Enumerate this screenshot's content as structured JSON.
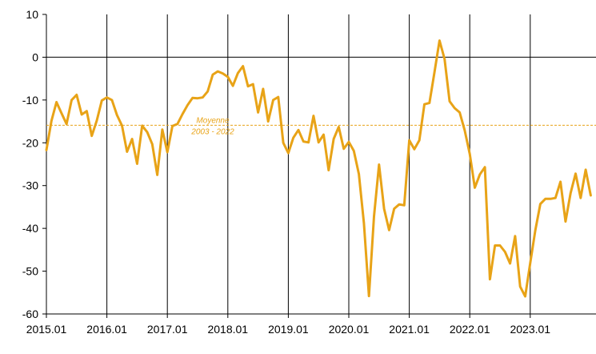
{
  "chart_data": {
    "type": "line",
    "title": "",
    "xlabel": "",
    "ylabel": "",
    "ylim": [
      -60,
      10
    ],
    "yticks": [
      10,
      0,
      -10,
      -20,
      -30,
      -40,
      -50,
      -60
    ],
    "x_ticks": [
      "2015.01",
      "2016.01",
      "2017.01",
      "2018.01",
      "2019.01",
      "2020.01",
      "2021.01",
      "2022.01",
      "2023.01"
    ],
    "x_start": "2015.01",
    "x_end": "2023.11",
    "vertical_gridlines": true,
    "horizontal_gridlines": false,
    "zero_line": true,
    "legend": "none",
    "colors": {
      "series": "#E8A317",
      "axis": "#000000"
    },
    "series": [
      {
        "values": [
          -21.7,
          -14.9,
          -10.5,
          -13.1,
          -15.6,
          -10.0,
          -8.8,
          -13.4,
          -12.6,
          -18.4,
          -14.8,
          -10.1,
          -9.4,
          -10.0,
          -13.5,
          -16.0,
          -22.1,
          -19.1,
          -24.9,
          -16.0,
          -17.5,
          -20.3,
          -27.5,
          -16.9,
          -22.2,
          -16.1,
          -15.6,
          -13.3,
          -11.2,
          -9.5,
          -9.6,
          -9.4,
          -8.0,
          -4.1,
          -3.3,
          -3.8,
          -4.6,
          -6.7,
          -3.7,
          -2.1,
          -6.8,
          -6.3,
          -12.9,
          -7.4,
          -15.0,
          -10.0,
          -9.3,
          -20.0,
          -22.4,
          -18.8,
          -17.0,
          -19.7,
          -19.9,
          -13.7,
          -19.9,
          -18.1,
          -26.4,
          -19.1,
          -16.3,
          -21.4,
          -19.8,
          -21.9,
          -27.3,
          -38.8,
          -55.8,
          -37.2,
          -25.1,
          -35.4,
          -40.4,
          -35.4,
          -34.4,
          -34.6,
          -19.4,
          -21.5,
          -19.4,
          -11.0,
          -10.7,
          -3.5,
          3.9,
          -0.4,
          -10.3,
          -11.9,
          -12.9,
          -17.1,
          -22.6,
          -30.5,
          -27.4,
          -25.7,
          -51.9,
          -44.0,
          -44.0,
          -45.5,
          -48.2,
          -41.8,
          -53.6,
          -55.9,
          -48.1,
          -40.5,
          -34.3,
          -33.1,
          -33.1,
          -32.9,
          -29.1,
          -38.4,
          -31.8,
          -27.2,
          -32.9,
          -26.3,
          -32.3
        ]
      }
    ],
    "reference_line": {
      "value": -15.9,
      "label_line1": "Moyenne",
      "label_line2": "2003 - 2022"
    }
  }
}
